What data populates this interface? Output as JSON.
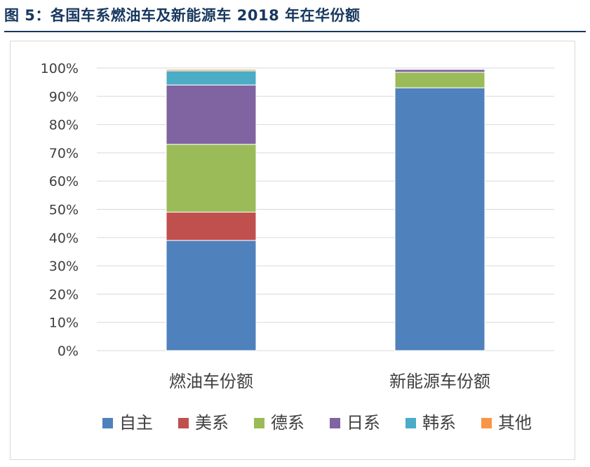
{
  "title": "图 5：各国车系燃油车及新能源车 2018 年在华份额",
  "chart_data": {
    "type": "bar",
    "stacked": true,
    "categories": [
      "燃油车份额",
      "新能源车份额"
    ],
    "series": [
      {
        "name": "自主",
        "color": "#4f81bd",
        "values": [
          39,
          93
        ]
      },
      {
        "name": "美系",
        "color": "#c0504d",
        "values": [
          10,
          0
        ]
      },
      {
        "name": "德系",
        "color": "#9bbb59",
        "values": [
          24,
          5.5
        ]
      },
      {
        "name": "日系",
        "color": "#8064a2",
        "values": [
          21,
          1
        ]
      },
      {
        "name": "韩系",
        "color": "#4bacc6",
        "values": [
          5,
          0
        ]
      },
      {
        "name": "其他",
        "color": "#f79646",
        "values": [
          0.5,
          0
        ]
      }
    ],
    "ylim": [
      0,
      100
    ],
    "yticks": [
      "0%",
      "10%",
      "20%",
      "30%",
      "40%",
      "50%",
      "60%",
      "70%",
      "80%",
      "90%",
      "100%"
    ],
    "grid": true,
    "legend": "bottom"
  }
}
